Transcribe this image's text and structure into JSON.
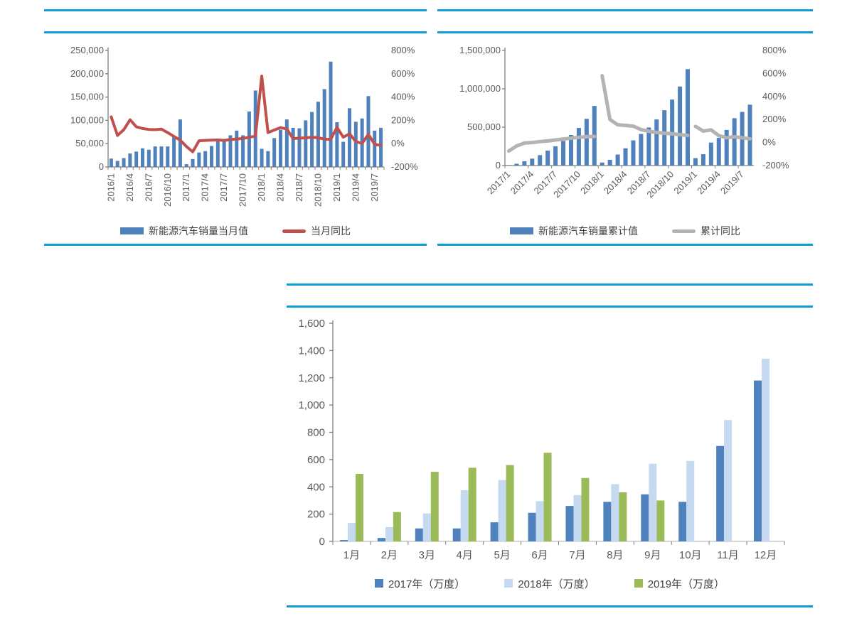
{
  "theme": {
    "rule_color": "#0d9ddb",
    "axis_color": "#808080",
    "axis_color_light": "#bfbfbf",
    "tick_label_color": "#595959",
    "legend_text_color": "#404040",
    "bar_blue": "#4f81bd",
    "line_red": "#c0504d",
    "line_gray": "#b3b3b3",
    "bar_light_blue": "#c5d9f1",
    "bar_green": "#9bbb59"
  },
  "chart_data": [
    {
      "id": "nev-monthly-sales",
      "type": "bar",
      "header_title": "",
      "categories": [
        "2016/1",
        "2016/2",
        "2016/3",
        "2016/4",
        "2016/5",
        "2016/6",
        "2016/7",
        "2016/8",
        "2016/9",
        "2016/10",
        "2016/11",
        "2016/12",
        "2017/1",
        "2017/2",
        "2017/3",
        "2017/4",
        "2017/5",
        "2017/6",
        "2017/7",
        "2017/8",
        "2017/9",
        "2017/10",
        "2017/11",
        "2017/12",
        "2018/1",
        "2018/2",
        "2018/3",
        "2018/4",
        "2018/5",
        "2018/6",
        "2018/7",
        "2018/8",
        "2018/9",
        "2018/10",
        "2018/11",
        "2018/12",
        "2019/1",
        "2019/2",
        "2019/3",
        "2019/4",
        "2019/5",
        "2019/6",
        "2019/7",
        "2019/8"
      ],
      "x_tick_labels_shown": [
        "2016/1",
        "2016/4",
        "2016/7",
        "2016/10",
        "2017/1",
        "2017/4",
        "2017/7",
        "2017/10",
        "2018/1",
        "2018/4",
        "2018/7",
        "2018/10",
        "2019/1",
        "2019/4",
        "2019/7"
      ],
      "x_label_rotation": 90,
      "series": [
        {
          "name": "新能源汽车销量当月值",
          "kind": "bar",
          "axis": "left",
          "color": "#4f81bd",
          "values": [
            18000,
            13000,
            19000,
            29000,
            33000,
            40000,
            37000,
            44000,
            44000,
            44000,
            64000,
            102000,
            6000,
            17000,
            31000,
            34000,
            45000,
            59000,
            56000,
            68000,
            78000,
            68000,
            119000,
            164000,
            39000,
            34000,
            62000,
            80000,
            102000,
            84000,
            83000,
            100000,
            118000,
            140000,
            167000,
            226000,
            96000,
            54000,
            126000,
            97000,
            104000,
            152000,
            78000,
            84000
          ]
        },
        {
          "name": "当月同比",
          "kind": "line",
          "axis": "right",
          "color": "#c0504d",
          "values": [
            230,
            70,
            120,
            205,
            145,
            130,
            122,
            120,
            125,
            95,
            62,
            30,
            -25,
            -70,
            25,
            28,
            30,
            32,
            28,
            35,
            40,
            45,
            55,
            65,
            580,
            95,
            117,
            138,
            126,
            43,
            48,
            50,
            55,
            51,
            38,
            38,
            140,
            55,
            85,
            18,
            2,
            80,
            -5,
            -16
          ]
        }
      ],
      "left_axis": {
        "min": 0,
        "max": 250000,
        "step": 50000
      },
      "right_axis": {
        "min": -200,
        "max": 800,
        "step": 200,
        "suffix": "%"
      },
      "grid": false,
      "legend_position": "bottom"
    },
    {
      "id": "nev-cumulative-sales",
      "type": "bar",
      "header_title": "",
      "categories": [
        "2017/1",
        "2017/2",
        "2017/3",
        "2017/4",
        "2017/5",
        "2017/6",
        "2017/7",
        "2017/8",
        "2017/9",
        "2017/10",
        "2017/11",
        "2017/12",
        "2018/1",
        "2018/2",
        "2018/3",
        "2018/4",
        "2018/5",
        "2018/6",
        "2018/7",
        "2018/8",
        "2018/9",
        "2018/10",
        "2018/11",
        "2018/12",
        "2019/1",
        "2019/2",
        "2019/3",
        "2019/4",
        "2019/5",
        "2019/6",
        "2019/7",
        "2019/8"
      ],
      "x_tick_labels_shown": [
        "2017/1",
        "2017/4",
        "2017/7",
        "2017/10",
        "2018/1",
        "2018/4",
        "2018/7",
        "2018/10",
        "2019/1",
        "2019/4",
        "2019/7"
      ],
      "x_label_rotation": 45,
      "series": [
        {
          "name": "新能源汽车销量累计值",
          "kind": "bar",
          "axis": "left",
          "color": "#4f81bd",
          "values": [
            5700,
            24000,
            56000,
            90000,
            136000,
            195000,
            251000,
            320000,
            398000,
            490000,
            609000,
            777000,
            38800,
            74600,
            143000,
            225000,
            328000,
            412000,
            496000,
            601000,
            721000,
            860000,
            1030000,
            1256000,
            96000,
            148000,
            299000,
            360000,
            464000,
            617000,
            699000,
            793000
          ]
        },
        {
          "name": "累计同比",
          "kind": "line",
          "axis": "right",
          "color": "#b3b3b3",
          "values": [
            -74,
            -30,
            -5,
            0,
            8,
            14,
            22,
            30,
            38,
            45,
            51,
            53,
            580,
            200,
            154,
            149,
            142,
            112,
            98,
            88,
            81,
            76,
            68,
            62,
            140,
            99,
            110,
            60,
            42,
            50,
            41,
            32
          ],
          "breaks": [
            12,
            24
          ]
        }
      ],
      "left_axis": {
        "min": 0,
        "max": 1500000,
        "step": 500000
      },
      "right_axis": {
        "min": -200,
        "max": 800,
        "step": 200,
        "suffix": "%"
      },
      "grid": false,
      "legend_position": "bottom"
    },
    {
      "id": "charging-volume-by-year",
      "type": "bar",
      "header_title": "",
      "categories": [
        "1月",
        "2月",
        "3月",
        "4月",
        "5月",
        "6月",
        "7月",
        "8月",
        "9月",
        "10月",
        "11月",
        "12月"
      ],
      "series": [
        {
          "name": "2017年（万度）",
          "kind": "bar",
          "color": "#4f81bd",
          "values": [
            10,
            25,
            95,
            95,
            140,
            210,
            260,
            290,
            345,
            290,
            700,
            1180
          ]
        },
        {
          "name": "2018年（万度）",
          "kind": "bar",
          "color": "#c5d9f1",
          "values": [
            135,
            105,
            205,
            375,
            450,
            295,
            340,
            420,
            570,
            590,
            890,
            1340
          ]
        },
        {
          "name": "2019年（万度）",
          "kind": "bar",
          "color": "#9bbb59",
          "values": [
            495,
            215,
            510,
            540,
            560,
            650,
            465,
            360,
            300,
            null,
            null,
            null
          ]
        }
      ],
      "y_axis": {
        "min": 0,
        "max": 1600,
        "step": 200
      },
      "grid": false,
      "legend_position": "bottom"
    }
  ]
}
